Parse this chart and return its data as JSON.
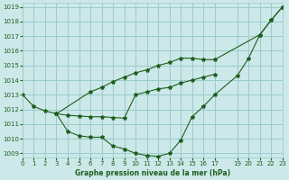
{
  "title": "Graphe pression niveau de la mer (hPa)",
  "bg_color": "#cce8e8",
  "grid_color": "#99cccc",
  "line_color": "#1e5e1e",
  "xlim": [
    0,
    23
  ],
  "ylim": [
    1008.7,
    1019.3
  ],
  "yticks": [
    1009,
    1010,
    1011,
    1012,
    1013,
    1014,
    1015,
    1016,
    1017,
    1018,
    1019
  ],
  "xticks": [
    0,
    1,
    2,
    3,
    4,
    5,
    6,
    7,
    8,
    9,
    10,
    11,
    12,
    13,
    14,
    15,
    16,
    17,
    19,
    20,
    21,
    22,
    23
  ],
  "lines": [
    {
      "x": [
        0,
        1,
        2,
        3,
        4,
        5,
        6,
        7,
        8,
        9,
        10,
        11,
        12,
        13,
        14,
        15,
        16,
        17,
        19,
        20,
        21,
        22,
        23
      ],
      "y": [
        1013.0,
        1012.2,
        1011.9,
        1011.7,
        1010.5,
        1010.2,
        1010.1,
        1010.1,
        1009.5,
        1009.3,
        1009.0,
        1008.85,
        1008.8,
        1009.0,
        1009.9,
        1011.5,
        1012.2,
        1013.0,
        1014.3,
        1015.5,
        1017.1,
        1018.1,
        1019.0
      ]
    },
    {
      "x": [
        3,
        6,
        7,
        8,
        9,
        10,
        11,
        12,
        13,
        14,
        15,
        16,
        17,
        21,
        22,
        23
      ],
      "y": [
        1011.7,
        1013.2,
        1013.5,
        1013.9,
        1014.2,
        1014.5,
        1014.7,
        1015.0,
        1015.2,
        1015.5,
        1015.5,
        1015.4,
        1015.4,
        1017.1,
        1018.1,
        1019.0
      ]
    },
    {
      "x": [
        3,
        4,
        5,
        6,
        7,
        8,
        9,
        10,
        11,
        12,
        13,
        14,
        15,
        16,
        17
      ],
      "y": [
        1011.7,
        1011.6,
        1011.55,
        1011.5,
        1011.5,
        1011.45,
        1011.4,
        1013.0,
        1013.2,
        1013.4,
        1013.5,
        1013.8,
        1014.0,
        1014.2,
        1014.4
      ]
    }
  ]
}
